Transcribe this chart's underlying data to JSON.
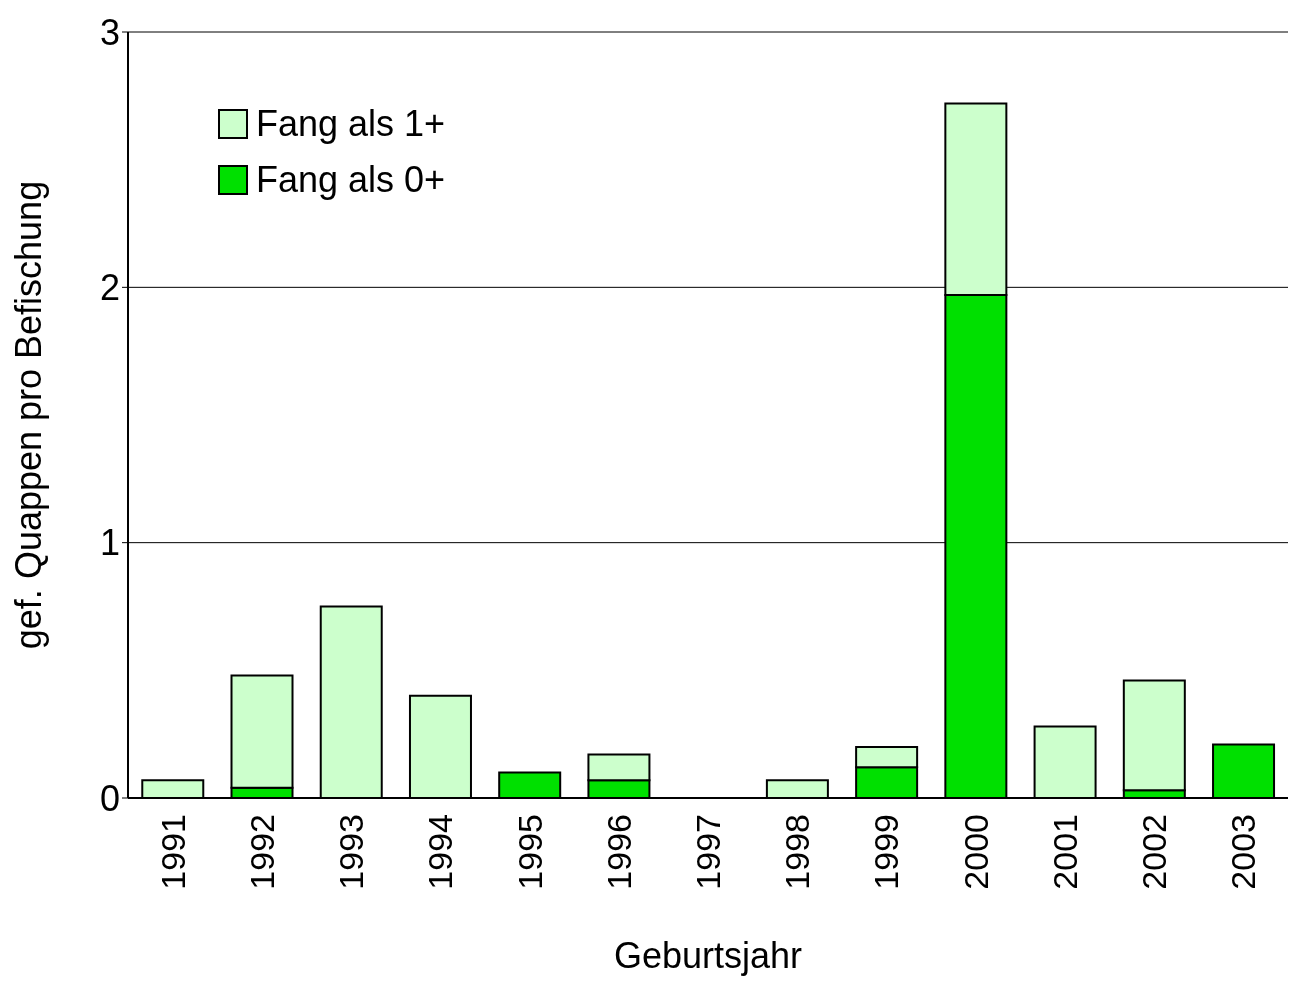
{
  "chart_data": {
    "type": "bar",
    "stacked": true,
    "xlabel": "Geburtsjahr",
    "ylabel": "gef. Quappen pro Befischung",
    "categories": [
      "1991",
      "1992",
      "1993",
      "1994",
      "1995",
      "1996",
      "1997",
      "1998",
      "1999",
      "2000",
      "2001",
      "2002",
      "2003"
    ],
    "series": [
      {
        "name": "Fang als 0+",
        "color": "#00e000",
        "values": [
          0,
          0.04,
          0,
          0,
          0.1,
          0.07,
          0,
          0,
          0.12,
          1.97,
          0,
          0.03,
          0.21
        ]
      },
      {
        "name": "Fang als 1+",
        "color": "#ccffcc",
        "values": [
          0.07,
          0.44,
          0.75,
          0.4,
          0,
          0.1,
          0,
          0.07,
          0.08,
          0.75,
          0.28,
          0.43,
          0
        ]
      }
    ],
    "ylim": [
      0,
      3
    ],
    "yticks": [
      0,
      1,
      2,
      3
    ],
    "grid": "y",
    "legend": "top left"
  }
}
